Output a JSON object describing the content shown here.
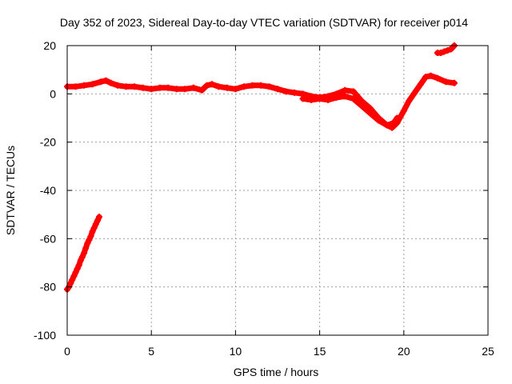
{
  "chart_data": {
    "type": "scatter",
    "title": "Day 352 of 2023, Sidereal Day-to-day VTEC variation (SDTVAR) for receiver p014",
    "xlabel": "GPS time / hours",
    "ylabel": "SDTVAR / TECUs",
    "xlim": [
      0,
      25
    ],
    "ylim": [
      -100,
      20
    ],
    "xticks": [
      0,
      5,
      10,
      15,
      20,
      25
    ],
    "yticks": [
      -100,
      -80,
      -60,
      -40,
      -20,
      0,
      20
    ],
    "grid": true,
    "marker_color": "#ff0000",
    "series": [
      {
        "name": "early-descent",
        "x": [
          0.0,
          0.1,
          0.2,
          0.3,
          0.4,
          0.5,
          0.6,
          0.7,
          0.8,
          0.9,
          1.0,
          1.1,
          1.2,
          1.3,
          1.4,
          1.5,
          1.6,
          1.7,
          1.8,
          1.9
        ],
        "y": [
          -81,
          -80,
          -78.5,
          -77,
          -75.5,
          -74,
          -72.5,
          -71,
          -69,
          -67.5,
          -66,
          -64,
          -62,
          -60.5,
          -59,
          -57,
          -55.5,
          -54,
          -52.5,
          -51
        ]
      },
      {
        "name": "main-track-a",
        "x": [
          0.0,
          0.5,
          1.0,
          1.5,
          2.0,
          2.3,
          2.6,
          3.0,
          3.5,
          4.0,
          4.5,
          5.0,
          5.5,
          6.0,
          6.5,
          7.0,
          7.5,
          8.0,
          8.3,
          8.6,
          9.0,
          9.5,
          10.0,
          10.5,
          11.0,
          11.5,
          12.0,
          12.5,
          13.0,
          13.5,
          14.0,
          14.5,
          15.0,
          15.5,
          16.0,
          16.5,
          17.0,
          17.5,
          18.0,
          18.5,
          19.0,
          19.3,
          19.6,
          20.0,
          20.3,
          20.6,
          21.0,
          21.3,
          21.6,
          22.0,
          22.5,
          23.0
        ],
        "y": [
          3,
          3,
          3.5,
          4,
          5,
          5.5,
          4.5,
          3.5,
          3,
          3,
          2.5,
          2,
          2.5,
          2.5,
          2,
          2,
          2.5,
          1.5,
          3.5,
          4,
          3,
          2.5,
          2,
          3,
          3.5,
          3.5,
          3,
          2,
          1,
          0.5,
          0,
          -1,
          -1.5,
          -1,
          0,
          1.5,
          1,
          -3,
          -6,
          -10,
          -13,
          -14,
          -12,
          -7,
          -3,
          0,
          4,
          7,
          7.5,
          6.5,
          5,
          4.5
        ]
      },
      {
        "name": "main-track-b",
        "x": [
          14.0,
          14.5,
          15.0,
          15.5,
          16.0,
          16.5,
          17.0,
          17.5,
          18.0,
          18.5,
          19.0,
          19.4,
          19.6
        ],
        "y": [
          -2,
          -2.5,
          -2,
          -2.5,
          -1.5,
          -1,
          -2,
          -5,
          -8,
          -11,
          -13,
          -12,
          -10
        ]
      },
      {
        "name": "late-segment",
        "x": [
          22.0,
          22.2,
          22.4,
          22.6,
          22.8,
          23.0
        ],
        "y": [
          17,
          17,
          17.5,
          18,
          18.5,
          20
        ]
      }
    ]
  }
}
